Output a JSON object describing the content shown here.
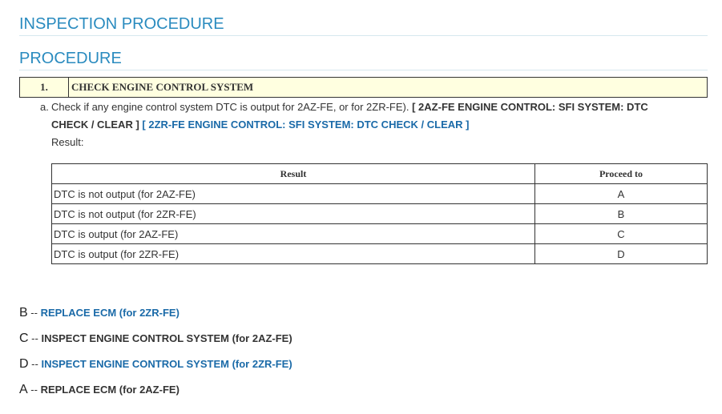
{
  "headings": {
    "inspection": "INSPECTION PROCEDURE",
    "procedure": "PROCEDURE"
  },
  "step": {
    "number": "1.",
    "title": "CHECK ENGINE CONTROL SYSTEM"
  },
  "instruction": {
    "marker": "a.",
    "text": "Check if any engine control system DTC is output for 2AZ-FE, or for 2ZR-FE).",
    "ref1": "[ 2AZ-FE ENGINE CONTROL: SFI SYSTEM: DTC CHECK / CLEAR ]",
    "ref2": "[ 2ZR-FE ENGINE CONTROL: SFI SYSTEM: DTC CHECK / CLEAR ]",
    "result_label": "Result:"
  },
  "table": {
    "headers": [
      "Result",
      "Proceed to"
    ],
    "rows": [
      [
        "DTC is not output (for 2AZ-FE)",
        "A"
      ],
      [
        "DTC is not output (for 2ZR-FE)",
        "B"
      ],
      [
        "DTC is output (for 2AZ-FE)",
        "C"
      ],
      [
        "DTC is output (for 2ZR-FE)",
        "D"
      ]
    ]
  },
  "results": [
    {
      "letter": "B",
      "sep": " -- ",
      "text": "REPLACE ECM (for 2ZR-FE)",
      "link": true
    },
    {
      "letter": "C",
      "sep": " -- ",
      "text": "INSPECT ENGINE CONTROL SYSTEM (for 2AZ-FE)",
      "link": false
    },
    {
      "letter": "D",
      "sep": " -- ",
      "text": "INSPECT ENGINE CONTROL SYSTEM (for 2ZR-FE)",
      "link": true
    },
    {
      "letter": "A",
      "sep": " -- ",
      "text": "REPLACE ECM (for 2AZ-FE)",
      "link": false
    }
  ]
}
